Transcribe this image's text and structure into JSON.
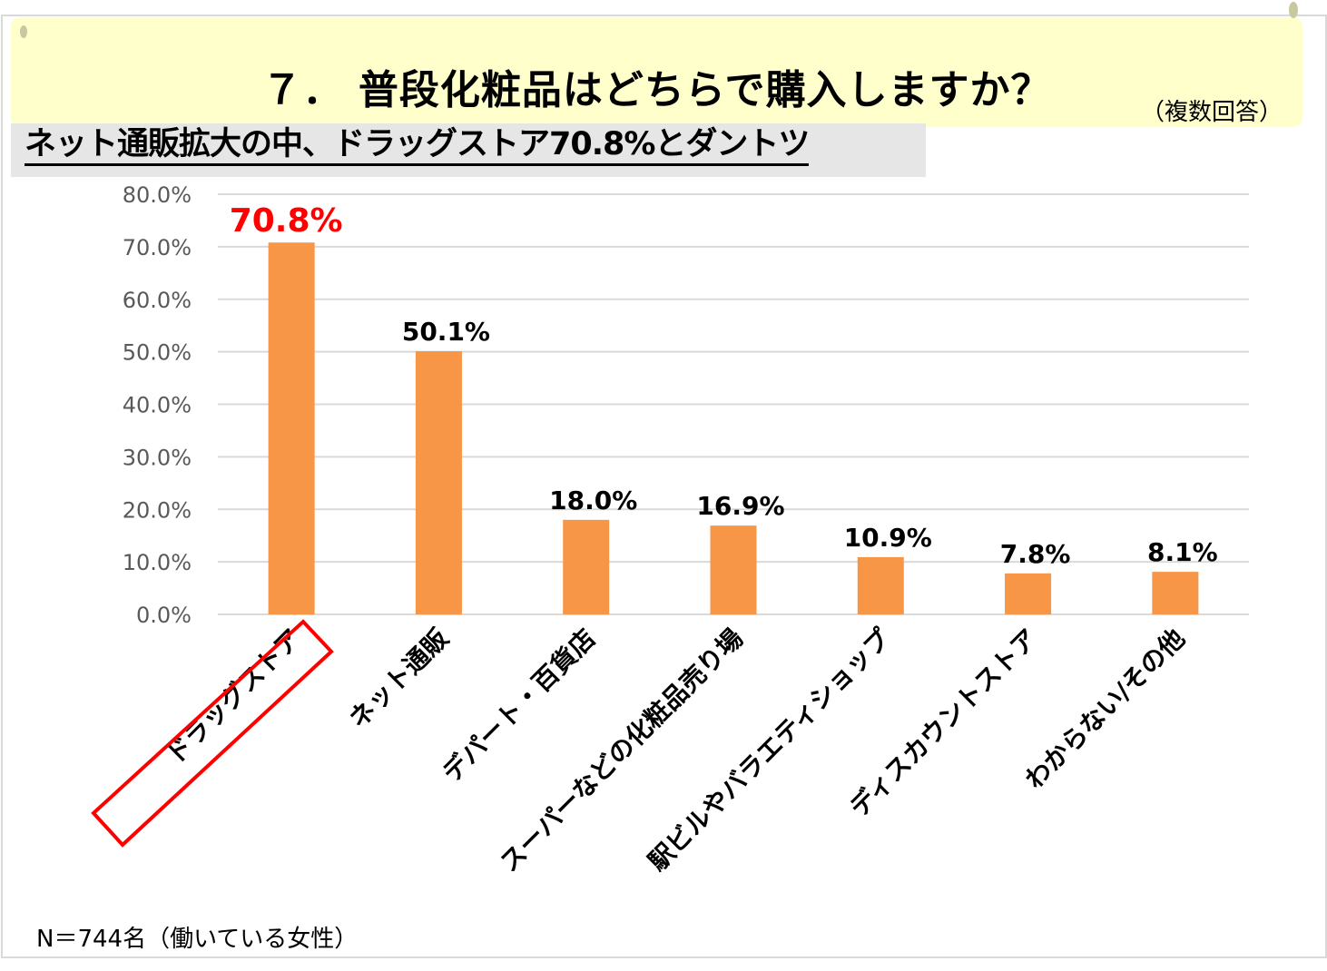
{
  "header": {
    "title": "７． 普段化粧品はどちらで購入しますか？",
    "multiple_answer": "（複数回答）"
  },
  "subtitle": "ネット通販拡大の中、ドラッグストア70.8%とダントツ",
  "footnote": "N＝744名（働いている女性）",
  "colors": {
    "bar": "#f79646",
    "highlight": "#ff0000",
    "grid": "#d9d9d9",
    "title_bg": "#ffffcc",
    "subtitle_bg": "#e6e6e6"
  },
  "chart_data": {
    "type": "bar",
    "title": "７． 普段化粧品はどちらで購入しますか？",
    "xlabel": "",
    "ylabel": "",
    "ylim": [
      0,
      80
    ],
    "yticks": [
      "0.0%",
      "10.0%",
      "20.0%",
      "30.0%",
      "40.0%",
      "50.0%",
      "60.0%",
      "70.0%",
      "80.0%"
    ],
    "grid": true,
    "categories": [
      "ドラッグストア",
      "ネット通販",
      "デパート・百貨店",
      "スーパーなどの化粧品売り場",
      "駅ビルやバラエティショップ",
      "ディスカウントストア",
      "わからない/その他"
    ],
    "values": [
      70.8,
      50.1,
      18.0,
      16.9,
      10.9,
      7.8,
      8.1
    ],
    "data_labels": [
      "70.8%",
      "50.1%",
      "18.0%",
      "16.9%",
      "10.9%",
      "7.8%",
      "8.1%"
    ],
    "highlight_index": 0
  }
}
